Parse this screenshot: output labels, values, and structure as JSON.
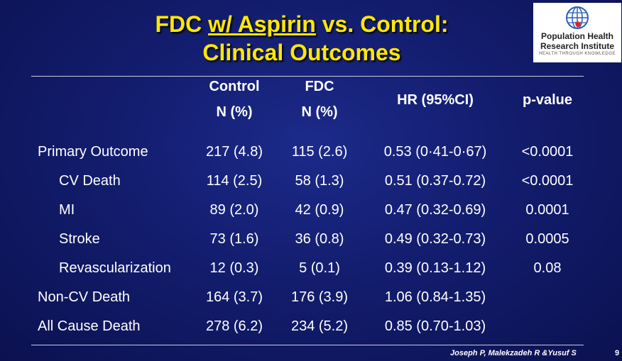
{
  "title": {
    "part1": "FDC ",
    "part2": "w/ Aspirin",
    "part3": " vs. Control:",
    "line2": "Clinical Outcomes"
  },
  "logo": {
    "line1": "Population Health",
    "line2": "Research Institute",
    "tagline": "HEALTH THROUGH KNOWLEDGE",
    "icon": "globe-maple-leaf-icon"
  },
  "table": {
    "headers": {
      "control": "Control",
      "control_sub": "N (%)",
      "fdc": "FDC",
      "fdc_sub": "N (%)",
      "hr": "HR (95%CI)",
      "p": "p-value"
    },
    "rows": [
      {
        "name": "Primary Outcome",
        "control": "217 (4.8)",
        "fdc": "115 (2.6)",
        "hr": "0.53 (0·41-0·67)",
        "p": "<0.0001"
      },
      {
        "name": "CV Death",
        "control": "114 (2.5)",
        "fdc": "58 (1.3)",
        "hr": "0.51 (0.37-0.72)",
        "p": "<0.0001"
      },
      {
        "name": "MI",
        "control": "89 (2.0)",
        "fdc": "42 (0.9)",
        "hr": "0.47 (0.32-0.69)",
        "p": "0.0001"
      },
      {
        "name": "Stroke",
        "control": "73 (1.6)",
        "fdc": "36 (0.8)",
        "hr": "0.49 (0.32-0.73)",
        "p": "0.0005"
      },
      {
        "name": "Revascularization",
        "control": "12 (0.3)",
        "fdc": "5 (0.1)",
        "hr": "0.39 (0.13-1.12)",
        "p": "0.08"
      },
      {
        "name": "Non-CV Death",
        "control": "164 (3.7)",
        "fdc": "176 (3.9)",
        "hr": "1.06 (0.84-1.35)",
        "p": ""
      },
      {
        "name": "All Cause Death",
        "control": "278 (6.2)",
        "fdc": "234 (5.2)",
        "hr": "0.85 (0.70-1.03)",
        "p": ""
      }
    ]
  },
  "footer": {
    "authors": "Joseph P, Malekzadeh R &Yusuf S",
    "page": "9"
  },
  "colors": {
    "title": "#ffe800",
    "background": "#131d6e",
    "text": "#ffffff"
  }
}
